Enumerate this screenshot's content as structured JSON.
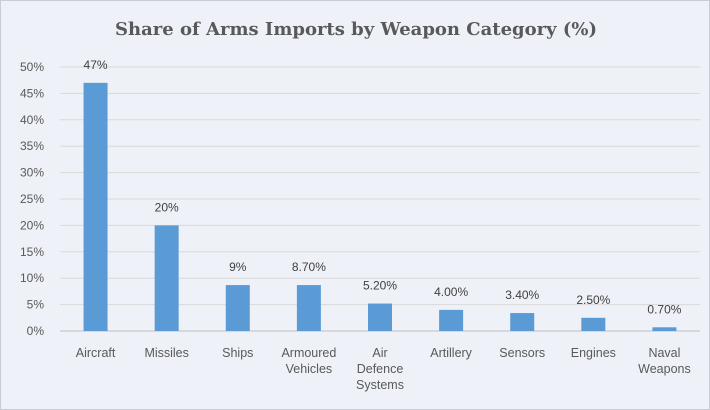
{
  "chart_data": {
    "type": "bar",
    "title": "Share of Arms Imports by Weapon Category (%)",
    "xlabel": "",
    "ylabel": "",
    "ylim": [
      0,
      50
    ],
    "yticks": [
      "0%",
      "5%",
      "10%",
      "15%",
      "20%",
      "25%",
      "30%",
      "35%",
      "40%",
      "45%",
      "50%"
    ],
    "grid": true,
    "legend": "none",
    "bar_color": "#5b9bd5",
    "categories": [
      [
        "Aircraft"
      ],
      [
        "Missiles"
      ],
      [
        "Ships"
      ],
      [
        "Armoured",
        "Vehicles"
      ],
      [
        "Air",
        "Defence",
        "Systems"
      ],
      [
        "Artillery"
      ],
      [
        "Sensors"
      ],
      [
        "Engines"
      ],
      [
        "Naval",
        "Weapons"
      ]
    ],
    "values": [
      47,
      20,
      8.7,
      8.7,
      5.2,
      4.0,
      3.4,
      2.5,
      0.7
    ],
    "data_labels": [
      "47%",
      "20%",
      "9%",
      "8.70%",
      "5.20%",
      "4.00%",
      "3.40%",
      "2.50%",
      "0.70%"
    ]
  }
}
